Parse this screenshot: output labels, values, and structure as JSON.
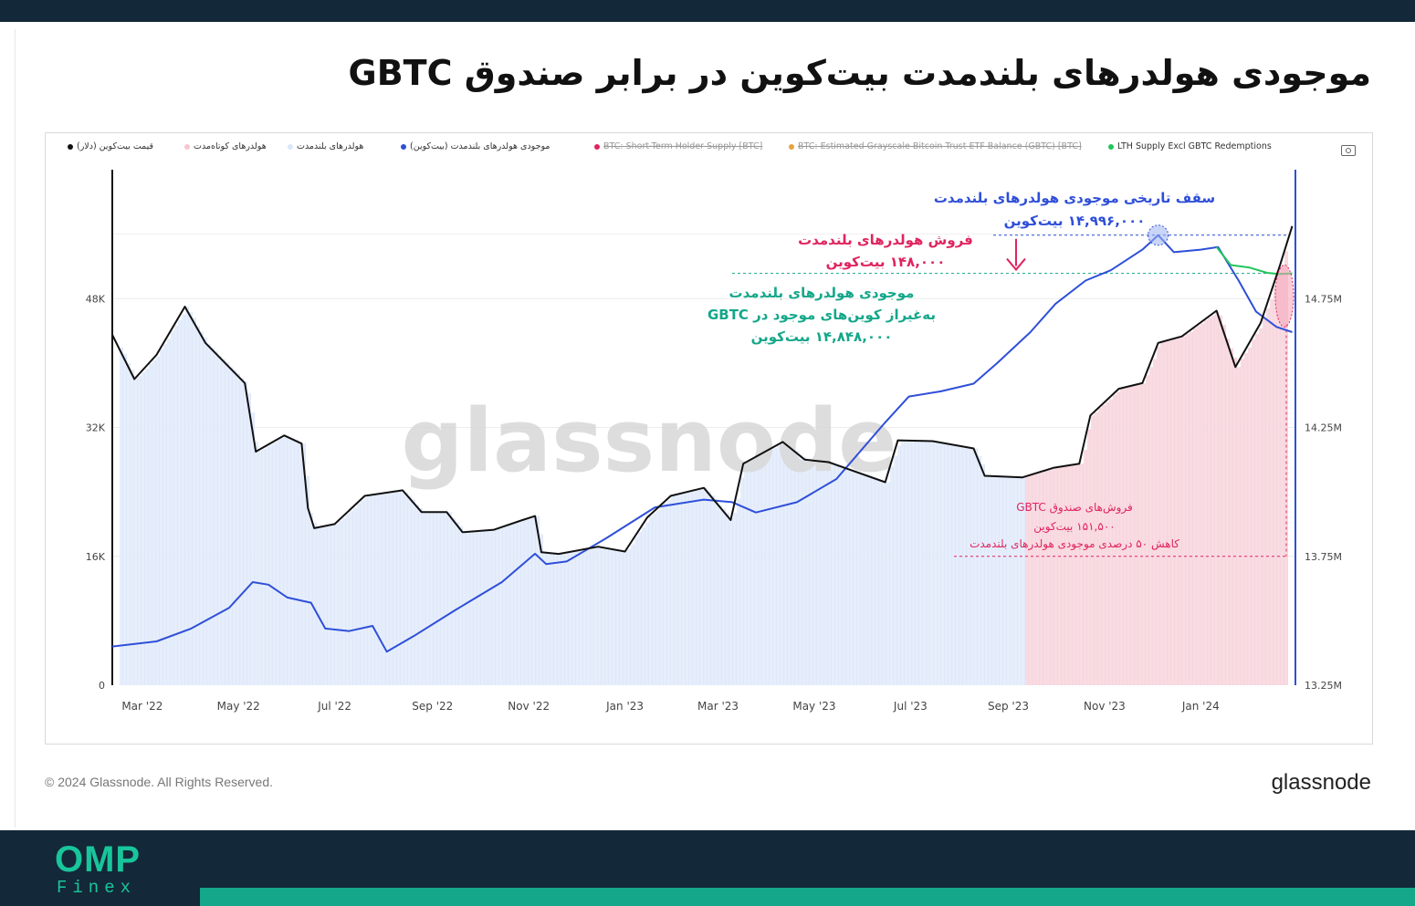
{
  "page": {
    "title": "موجودی هولدرهای بلندمدت بیت‌کوین در برابر صندوق GBTC",
    "copyright": "© 2024 Glassnode. All Rights Reserved.",
    "brand": "glassnode",
    "footer_logo_main": "OMP",
    "footer_logo_sub": "Finex"
  },
  "legend": [
    {
      "label": "قیمت بیت‌کوین (دلار)",
      "color": "#111111",
      "struck": false
    },
    {
      "label": "هولدرهای کوتاه‌مدت",
      "color": "#f5c6d0",
      "struck": false
    },
    {
      "label": "هولدرهای بلندمدت",
      "color": "#d9e6fb",
      "struck": false
    },
    {
      "label": "موجودی هولدرهای بلندمدت (بیت‌کوین)",
      "color": "#2f4fd8",
      "struck": false
    },
    {
      "label": "BTC: Short-Term Holder Supply [BTC]",
      "color": "#e0245e",
      "struck": true
    },
    {
      "label": "BTC: Estimated Grayscale Bitcoin Trust ETF Balance (GBTC) [BTC]",
      "color": "#e8a33d",
      "struck": true
    },
    {
      "label": "LTH Supply Excl GBTC Redemptions",
      "color": "#22c55e",
      "struck": false
    }
  ],
  "chart_data": {
    "type": "line",
    "watermark": "glassnode",
    "x_tick_labels": [
      "Mar '22",
      "May '22",
      "Jul '22",
      "Sep '22",
      "Nov '22",
      "Jan '23",
      "Mar '23",
      "May '23",
      "Jul '23",
      "Sep '23",
      "Nov '23",
      "Jan '24"
    ],
    "left_axis": {
      "ticks": [
        "0",
        "16K",
        "32K",
        "48K"
      ],
      "range": [
        0,
        64000
      ]
    },
    "right_axis": {
      "ticks": [
        "13.25M",
        "13.75M",
        "14.25M",
        "14.75M"
      ],
      "range": [
        13250000,
        15250000
      ]
    },
    "x_range": [
      "2022-02-10",
      "2024-03-01"
    ],
    "series": [
      {
        "name": "قیمت بیت‌کوین (دلار)",
        "axis": "left",
        "color": "#111111",
        "points": [
          [
            "2022-02-10",
            43500
          ],
          [
            "2022-02-24",
            38000
          ],
          [
            "2022-03-10",
            41000
          ],
          [
            "2022-03-28",
            47000
          ],
          [
            "2022-04-10",
            42500
          ],
          [
            "2022-04-25",
            39500
          ],
          [
            "2022-05-05",
            37500
          ],
          [
            "2022-05-12",
            29000
          ],
          [
            "2022-05-30",
            31000
          ],
          [
            "2022-06-10",
            30000
          ],
          [
            "2022-06-14",
            22000
          ],
          [
            "2022-06-18",
            19500
          ],
          [
            "2022-07-01",
            20000
          ],
          [
            "2022-07-20",
            23500
          ],
          [
            "2022-08-13",
            24200
          ],
          [
            "2022-08-25",
            21500
          ],
          [
            "2022-09-10",
            21500
          ],
          [
            "2022-09-20",
            19000
          ],
          [
            "2022-10-10",
            19300
          ],
          [
            "2022-10-28",
            20500
          ],
          [
            "2022-11-05",
            21000
          ],
          [
            "2022-11-09",
            16500
          ],
          [
            "2022-11-20",
            16300
          ],
          [
            "2022-12-15",
            17200
          ],
          [
            "2023-01-01",
            16600
          ],
          [
            "2023-01-15",
            20800
          ],
          [
            "2023-01-30",
            23500
          ],
          [
            "2023-02-20",
            24500
          ],
          [
            "2023-03-09",
            20500
          ],
          [
            "2023-03-17",
            27500
          ],
          [
            "2023-04-11",
            30200
          ],
          [
            "2023-04-25",
            28000
          ],
          [
            "2023-05-10",
            27700
          ],
          [
            "2023-06-15",
            25200
          ],
          [
            "2023-06-23",
            30400
          ],
          [
            "2023-07-15",
            30300
          ],
          [
            "2023-08-10",
            29400
          ],
          [
            "2023-08-17",
            26000
          ],
          [
            "2023-09-10",
            25800
          ],
          [
            "2023-09-30",
            27000
          ],
          [
            "2023-10-16",
            27500
          ],
          [
            "2023-10-23",
            33500
          ],
          [
            "2023-11-10",
            36800
          ],
          [
            "2023-11-25",
            37500
          ],
          [
            "2023-12-05",
            42500
          ],
          [
            "2023-12-20",
            43300
          ],
          [
            "2024-01-11",
            46500
          ],
          [
            "2024-01-23",
            39500
          ],
          [
            "2024-02-08",
            45000
          ],
          [
            "2024-02-20",
            52000
          ],
          [
            "2024-02-28",
            57000
          ]
        ]
      },
      {
        "name": "موجودی هولدرهای بلندمدت (بیت‌کوین)",
        "axis": "right",
        "color": "#2f4fd8",
        "points": [
          [
            "2022-02-10",
            13400000
          ],
          [
            "2022-03-10",
            13420000
          ],
          [
            "2022-04-01",
            13470000
          ],
          [
            "2022-04-25",
            13550000
          ],
          [
            "2022-05-10",
            13650000
          ],
          [
            "2022-05-20",
            13640000
          ],
          [
            "2022-06-01",
            13590000
          ],
          [
            "2022-06-16",
            13570000
          ],
          [
            "2022-06-25",
            13470000
          ],
          [
            "2022-07-10",
            13460000
          ],
          [
            "2022-07-25",
            13480000
          ],
          [
            "2022-08-03",
            13380000
          ],
          [
            "2022-08-20",
            13440000
          ],
          [
            "2022-09-15",
            13540000
          ],
          [
            "2022-10-15",
            13650000
          ],
          [
            "2022-11-05",
            13760000
          ],
          [
            "2022-11-12",
            13720000
          ],
          [
            "2022-11-25",
            13730000
          ],
          [
            "2022-12-20",
            13820000
          ],
          [
            "2023-01-20",
            13940000
          ],
          [
            "2023-02-20",
            13970000
          ],
          [
            "2023-03-10",
            13960000
          ],
          [
            "2023-03-25",
            13920000
          ],
          [
            "2023-04-20",
            13960000
          ],
          [
            "2023-05-15",
            14050000
          ],
          [
            "2023-06-15",
            14270000
          ],
          [
            "2023-06-30",
            14370000
          ],
          [
            "2023-07-20",
            14390000
          ],
          [
            "2023-08-10",
            14420000
          ],
          [
            "2023-08-25",
            14500000
          ],
          [
            "2023-09-15",
            14620000
          ],
          [
            "2023-10-01",
            14730000
          ],
          [
            "2023-10-20",
            14820000
          ],
          [
            "2023-11-05",
            14860000
          ],
          [
            "2023-11-25",
            14940000
          ],
          [
            "2023-12-05",
            14996000
          ],
          [
            "2023-12-15",
            14930000
          ],
          [
            "2024-01-01",
            14940000
          ],
          [
            "2024-01-12",
            14950000
          ],
          [
            "2024-01-25",
            14820000
          ],
          [
            "2024-02-05",
            14700000
          ],
          [
            "2024-02-18",
            14640000
          ],
          [
            "2024-02-28",
            14620000
          ]
        ]
      },
      {
        "name": "LTH Supply Excl GBTC Redemptions",
        "axis": "right",
        "color": "#22c55e",
        "points": [
          [
            "2024-01-11",
            14950000
          ],
          [
            "2024-01-20",
            14880000
          ],
          [
            "2024-02-01",
            14870000
          ],
          [
            "2024-02-12",
            14850000
          ],
          [
            "2024-02-20",
            14845000
          ],
          [
            "2024-02-28",
            14848000
          ]
        ]
      }
    ],
    "annotations": {
      "ath_title": "سقف تاریخی موجودی هولدرهای بلندمدت",
      "ath_value": "۱۴,۹۹۶,۰۰۰ بیت‌کوین",
      "lth_sell_title": "فروش هولدرهای بلندمدت",
      "lth_sell_value": "۱۴۸,۰۰۰ بیت‌کوین",
      "excl_line1": "موجودی هولدرهای بلندمدت",
      "excl_line2": "به‌غیراز کوین‌های موجود در GBTC",
      "excl_value": "۱۴,۸۴۸,۰۰۰ بیت‌کوین",
      "gbtc_title": "فروش‌های صندوق GBTC",
      "gbtc_value": "۱۵۱,۵۰۰ بیت‌کوین",
      "gbtc_note": "کاهش ۵۰ درصدی موجودی هولدرهای بلندمدت"
    }
  }
}
